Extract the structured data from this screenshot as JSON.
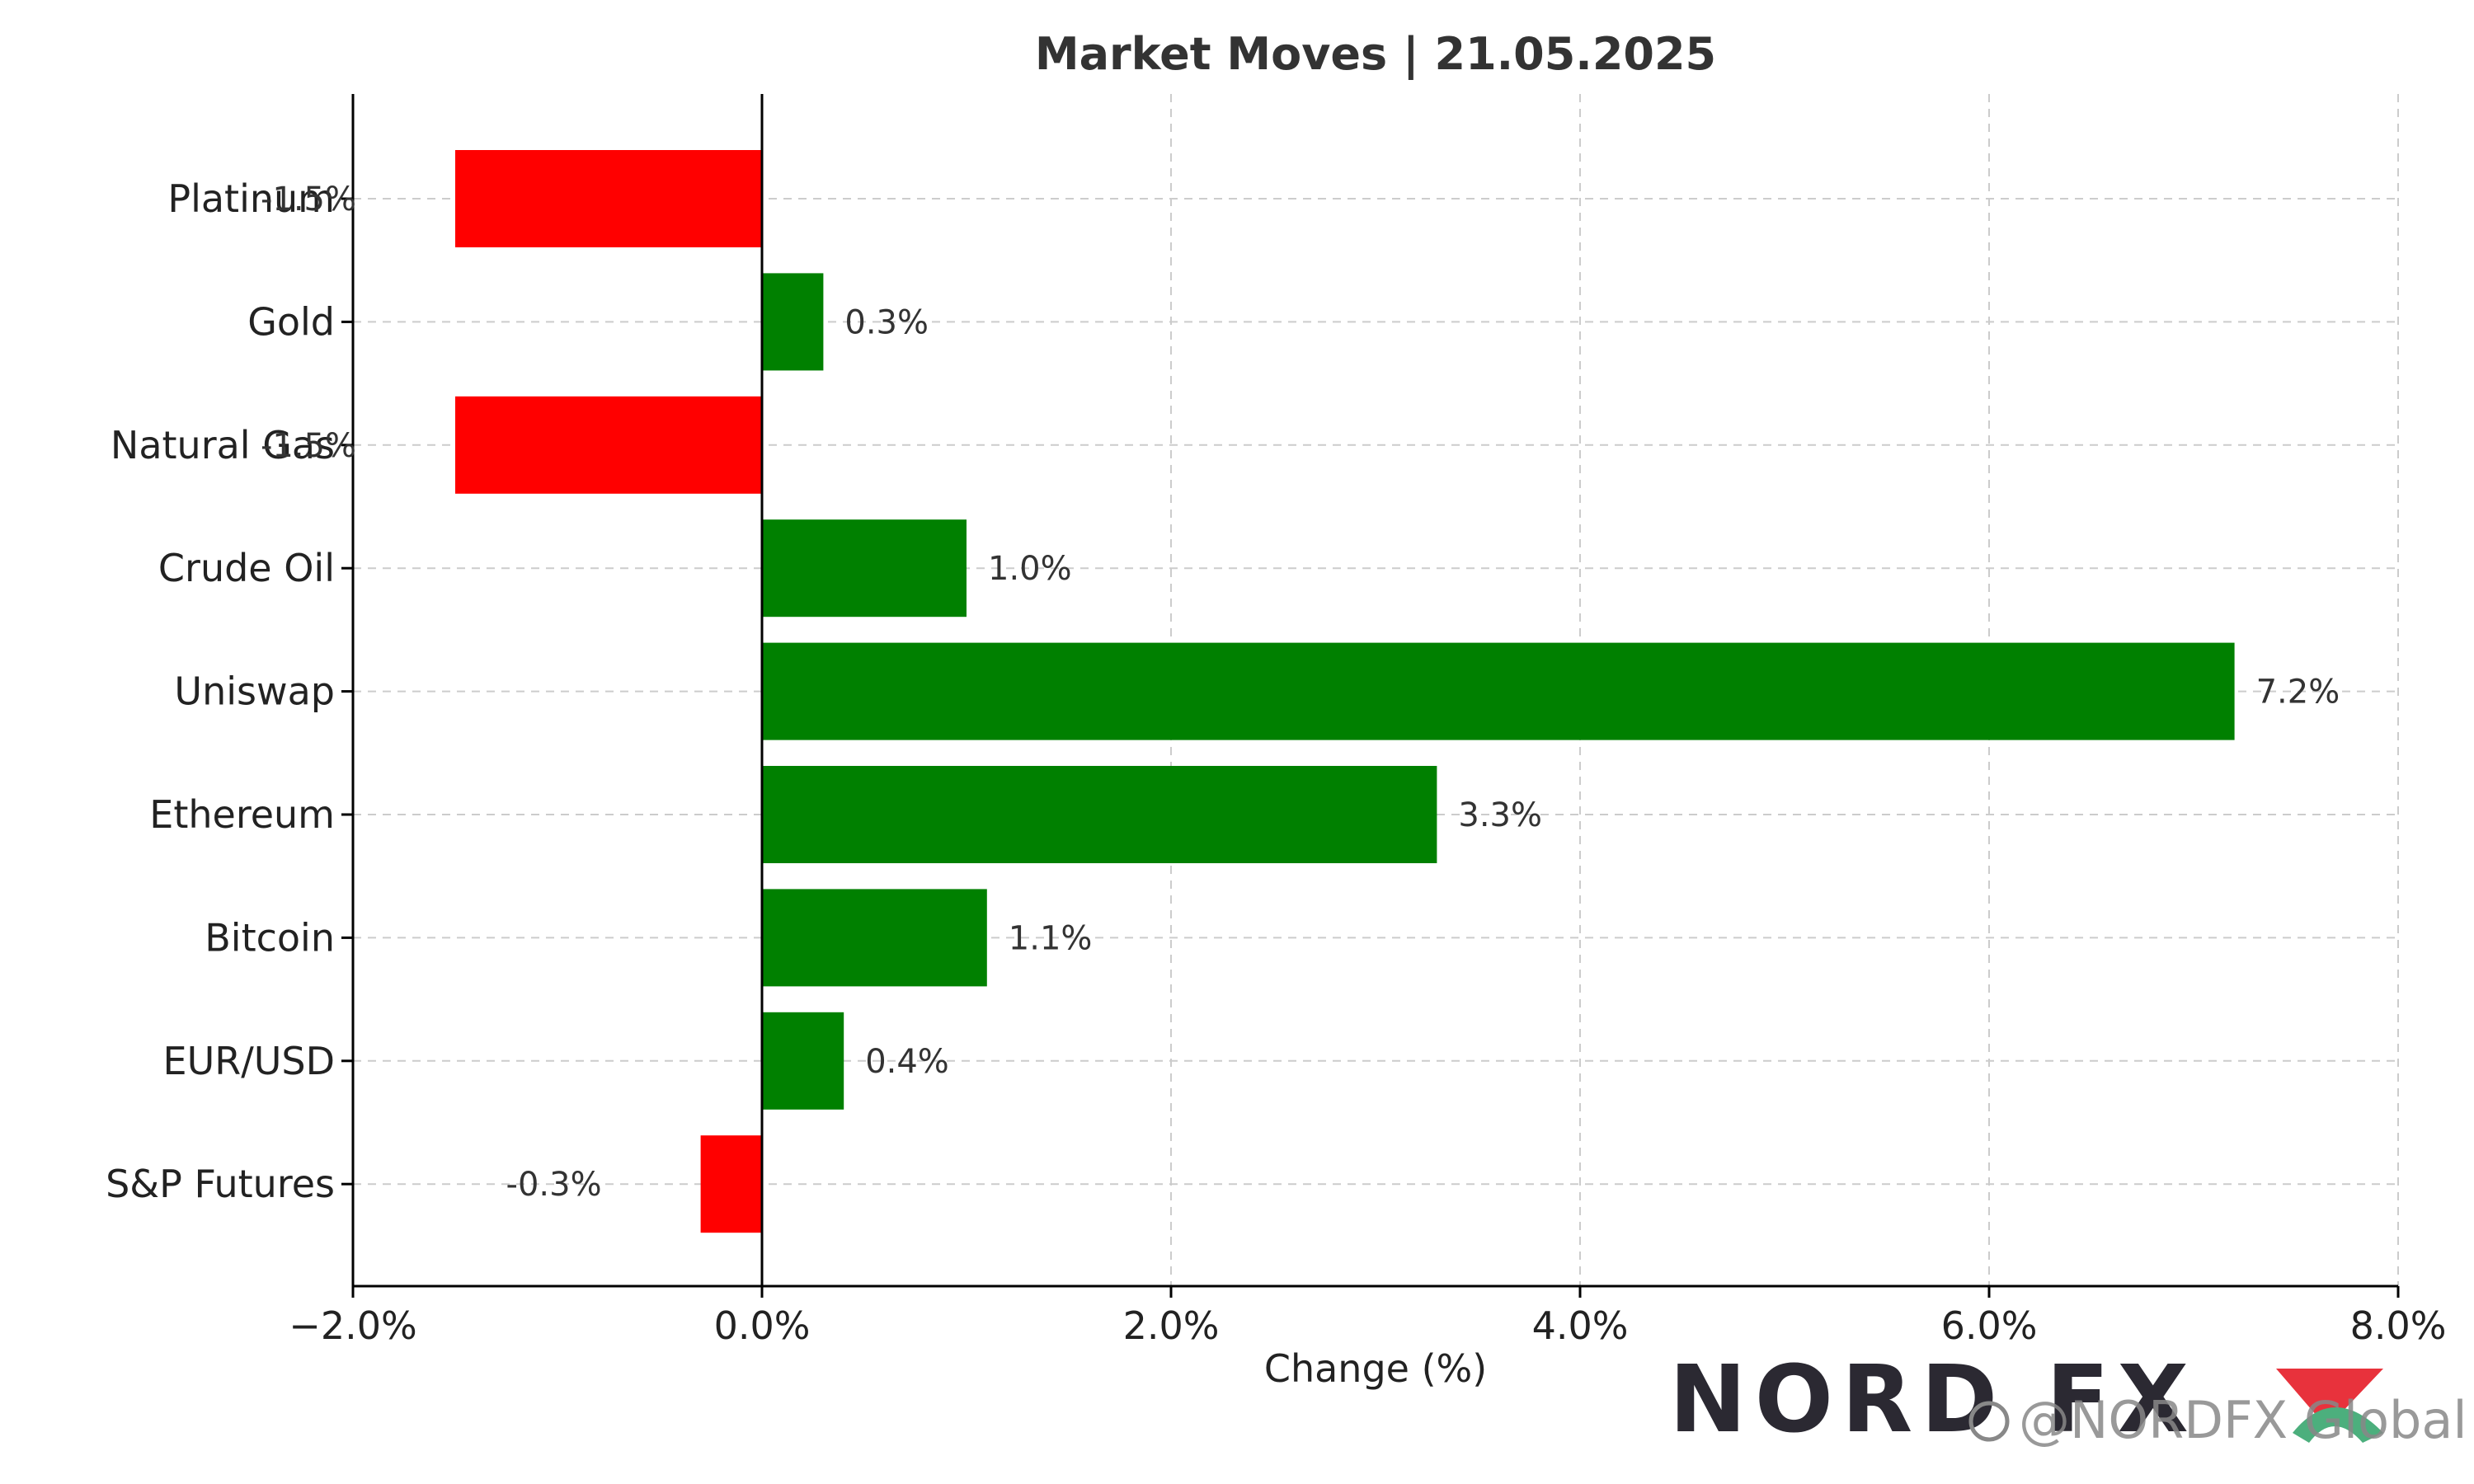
{
  "chart_data": {
    "type": "bar",
    "orientation": "horizontal",
    "title": "Market Moves | 21.05.2025",
    "xlabel": "Change (%)",
    "ylabel": "",
    "xlim": [
      -2.0,
      8.0
    ],
    "xticks": [
      -2.0,
      0.0,
      2.0,
      4.0,
      6.0,
      8.0
    ],
    "xtick_labels": [
      "−2.0%",
      "0.0%",
      "2.0%",
      "4.0%",
      "6.0%",
      "8.0%"
    ],
    "grid": true,
    "categories": [
      "Platinum",
      "Gold",
      "Natural Gas",
      "Crude Oil",
      "Uniswap",
      "Ethereum",
      "Bitcoin",
      "EUR/USD",
      "S&P Futures"
    ],
    "values": [
      -1.5,
      0.3,
      -1.5,
      1.0,
      7.2,
      3.3,
      1.1,
      0.4,
      -0.3
    ],
    "data_labels": [
      "-1.5%",
      "0.3%",
      "-1.5%",
      "1.0%",
      "7.2%",
      "3.3%",
      "1.1%",
      "0.4%",
      "-0.3%"
    ],
    "colors": {
      "positive": "#008000",
      "negative": "#ff0000"
    }
  },
  "branding": {
    "logo_text": "NORD FX",
    "watermark": "@NORDFX Global",
    "colors": {
      "logo_dark": "#2b2932",
      "logo_red": "#e8323c",
      "logo_green": "#4caf7d"
    }
  }
}
